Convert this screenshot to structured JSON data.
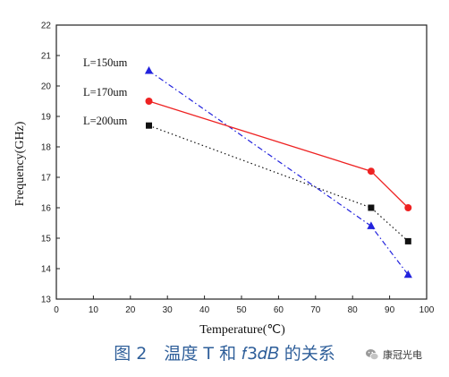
{
  "chart_data": {
    "type": "line",
    "title": "",
    "xlabel": "Temperature(℃)",
    "ylabel": "Frequency(GHz)",
    "xlim": [
      0,
      100
    ],
    "ylim": [
      13,
      22
    ],
    "xticks": [
      0,
      10,
      20,
      30,
      40,
      50,
      60,
      70,
      80,
      90,
      100
    ],
    "yticks": [
      13,
      14,
      15,
      16,
      17,
      18,
      19,
      20,
      21,
      22
    ],
    "grid": false,
    "legend": "none",
    "series": [
      {
        "name": "L=150um",
        "x": [
          25,
          85,
          95
        ],
        "y": [
          20.5,
          15.4,
          13.8
        ],
        "color": "#2222dd",
        "marker": "triangle",
        "line": "dash-dot"
      },
      {
        "name": "L=170um",
        "x": [
          25,
          85,
          95
        ],
        "y": [
          19.5,
          17.2,
          16.0
        ],
        "color": "#ee2222",
        "marker": "circle",
        "line": "solid"
      },
      {
        "name": "L=200um",
        "x": [
          25,
          85,
          95
        ],
        "y": [
          18.7,
          16.0,
          14.9
        ],
        "color": "#111111",
        "marker": "square",
        "line": "dotted"
      }
    ]
  },
  "caption": "图 2　温度 T 和 𝑓3𝑑𝐵 的关系",
  "watermark": "康冠光电",
  "watermark_icon": "wechat-icon"
}
